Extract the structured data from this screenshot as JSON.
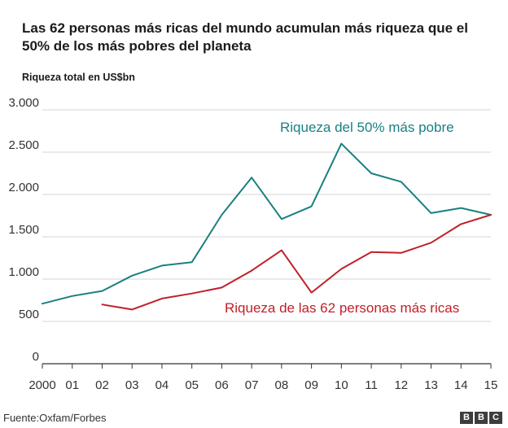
{
  "title": "Las 62 personas más ricas del mundo acumulan más riqueza que el 50% de los más pobres del planeta",
  "unit_label": "Riqueza total en US$bn",
  "source": "Fuente:Oxfam/Forbes",
  "logo": [
    "B",
    "B",
    "C"
  ],
  "chart_data": {
    "type": "line",
    "title": "Las 62 personas más ricas del mundo acumulan más riqueza que el 50% de los más pobres del planeta",
    "ylabel": "Riqueza total en US$bn",
    "xlabel": "",
    "x": [
      2000,
      2001,
      2002,
      2003,
      2004,
      2005,
      2006,
      2007,
      2008,
      2009,
      2010,
      2011,
      2012,
      2013,
      2014,
      2015
    ],
    "x_tick_labels": [
      "2000",
      "01",
      "02",
      "03",
      "04",
      "05",
      "06",
      "07",
      "08",
      "09",
      "10",
      "11",
      "12",
      "13",
      "14",
      "15"
    ],
    "ylim": [
      0,
      3000
    ],
    "y_ticks": [
      0,
      500,
      1000,
      1500,
      2000,
      2500,
      3000
    ],
    "y_tick_labels": [
      "0",
      "500",
      "1.000",
      "1.500",
      "2.000",
      "2.500",
      "3.000"
    ],
    "grid": true,
    "series": [
      {
        "name": "Riqueza del 50% más pobre",
        "color": "#1a8080",
        "values": [
          710,
          800,
          860,
          1040,
          1160,
          1200,
          1760,
          2200,
          1710,
          1860,
          2600,
          2250,
          2150,
          1780,
          1840,
          1760
        ]
      },
      {
        "name": "Riqueza de las 62 personas más ricas",
        "color": "#c0202a",
        "values": [
          null,
          null,
          700,
          640,
          770,
          830,
          900,
          1100,
          1340,
          840,
          1120,
          1320,
          1310,
          1430,
          1650,
          1760
        ]
      }
    ]
  }
}
